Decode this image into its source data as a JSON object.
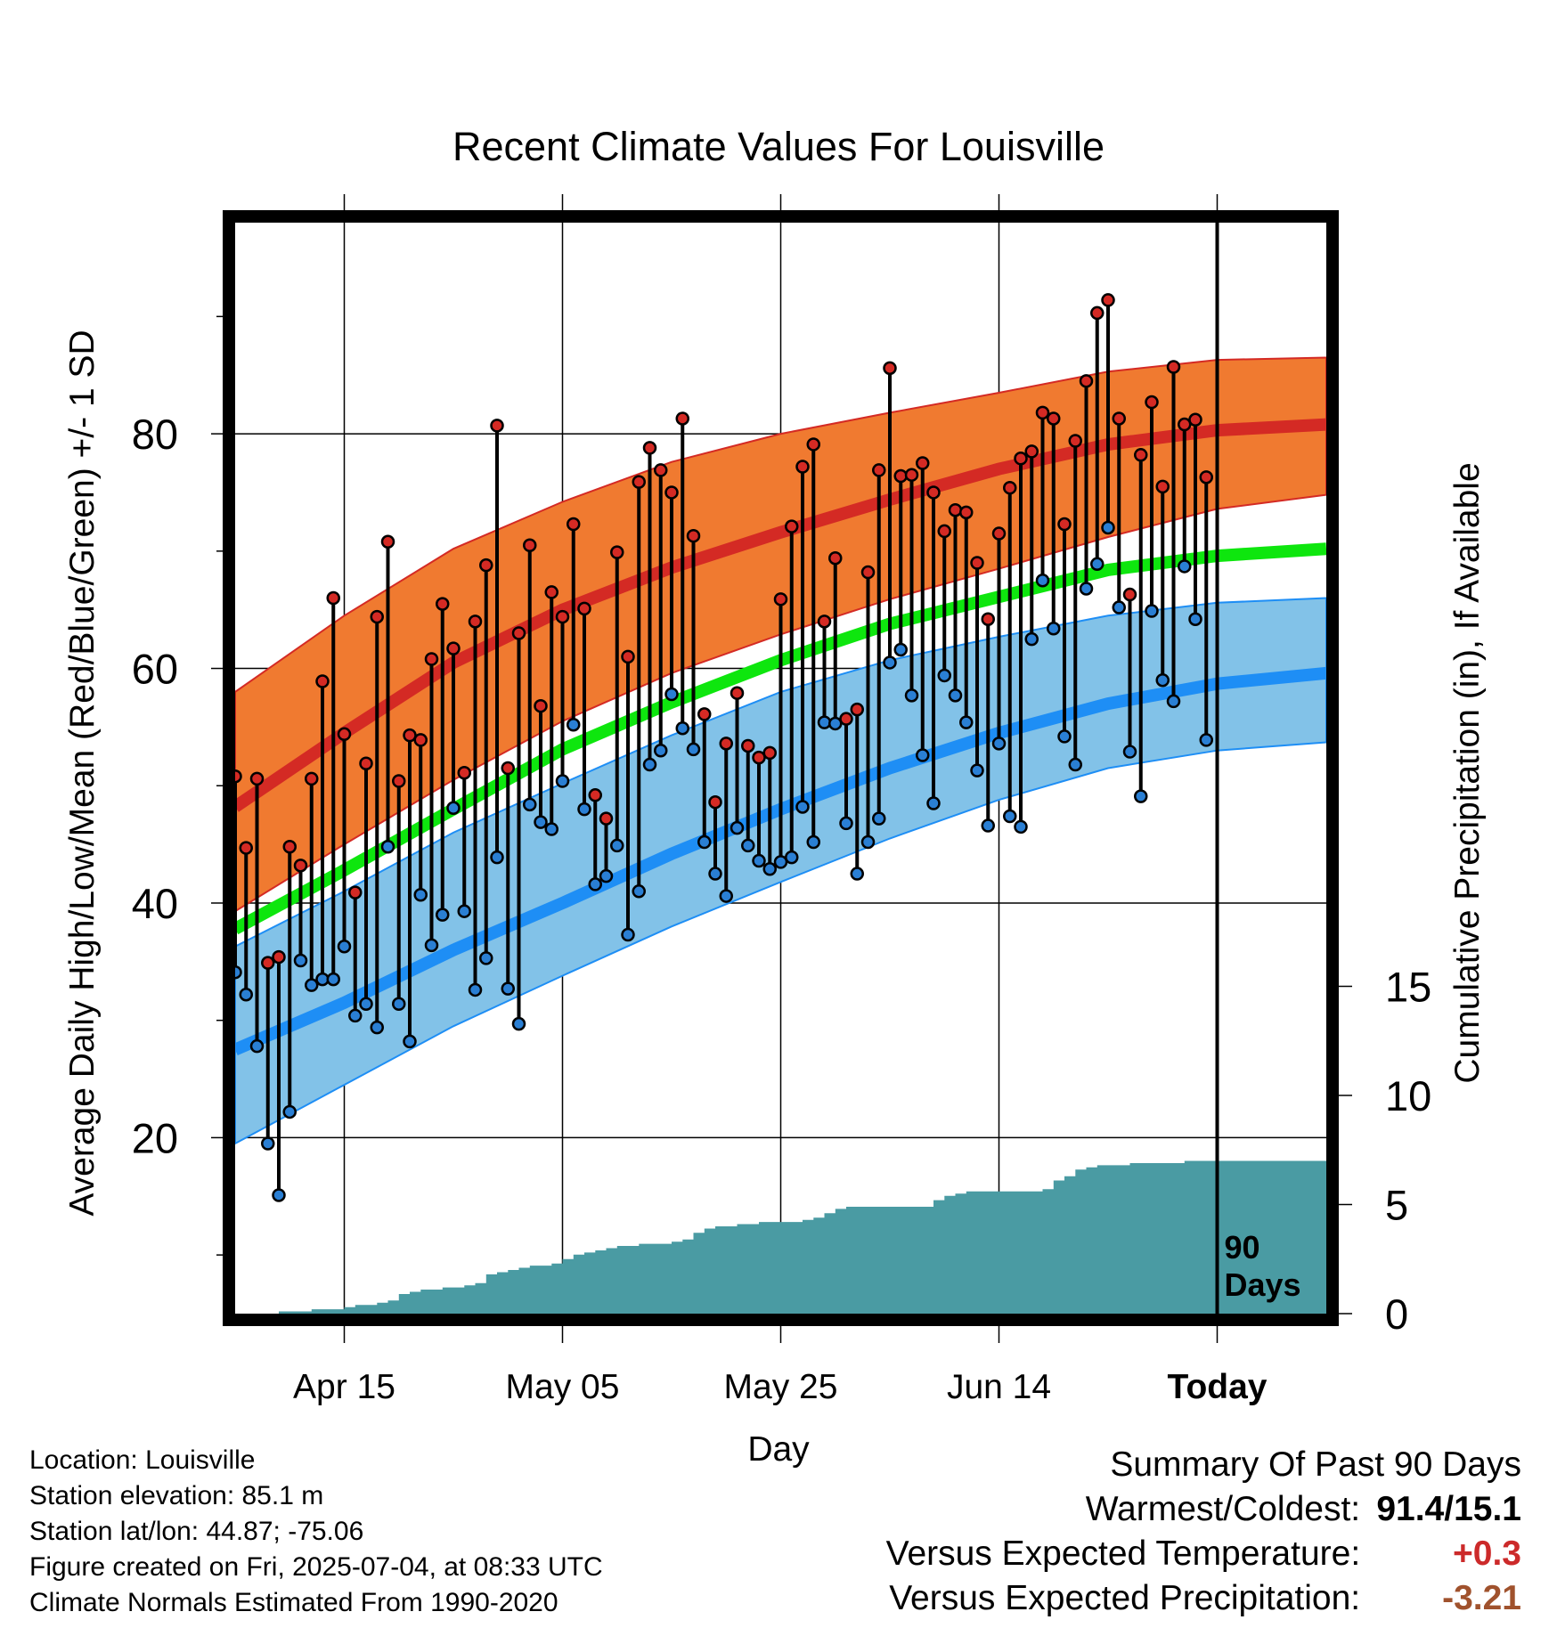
{
  "title": "Recent Climate Values For Louisville",
  "colors": {
    "high_band": "#f07a30",
    "high_line": "#d42a24",
    "low_band": "#82c2e8",
    "low_line": "#1e8ef5",
    "mean_line": "#0ee60e",
    "precip_fill": "#4a9ba3",
    "obs_high_marker": "#d42a24",
    "obs_low_marker": "#2a7fd4"
  },
  "meta": {
    "location": "Location: Louisville",
    "elevation": "Station elevation: 85.1 m",
    "latlon": "Station lat/lon: 44.87; -75.06",
    "created": "Figure created on Fri, 2025-07-04, at 08:33 UTC",
    "normals": "Climate Normals Estimated From 1990-2020"
  },
  "summary": {
    "heading": "Summary Of Past 90 Days",
    "warmest_coldest_label": "Warmest/Coldest:",
    "warmest_coldest_value": "91.4/15.1",
    "temp_label": "Versus Expected Temperature:",
    "temp_value": "+0.3",
    "temp_color": "#cc2a2a",
    "precip_label": "Versus Expected Precipitation:",
    "precip_value": "-3.21",
    "precip_color": "#a0522d"
  },
  "chart_data": {
    "type": "line",
    "title": "Recent Climate Values For Louisville",
    "xlabel": "Day",
    "ylabel": "Average Daily High/Low/Mean (Red/Blue/Green) +/- 1 SD",
    "y2label": "Cumulative Precipitation (in), If Available",
    "xlim": [
      "2025-04-05",
      "2025-07-14"
    ],
    "ylim": [
      5,
      98
    ],
    "y2lim": [
      0,
      50
    ],
    "yticks": [
      20,
      40,
      60,
      80
    ],
    "yticks_minor": [
      10,
      30,
      50,
      70,
      90
    ],
    "y2ticks": [
      0,
      5,
      10,
      15
    ],
    "xticks": [
      {
        "date": "2025-04-15",
        "label": "Apr 15"
      },
      {
        "date": "2025-05-05",
        "label": "May 05"
      },
      {
        "date": "2025-05-25",
        "label": "May 25"
      },
      {
        "date": "2025-06-14",
        "label": "Jun 14"
      },
      {
        "date": "2025-07-04",
        "label": "Today"
      }
    ],
    "today_label": [
      "90",
      "Days"
    ],
    "grid": true,
    "normals": {
      "dates": [
        "2025-04-05",
        "2025-04-15",
        "2025-04-25",
        "2025-05-05",
        "2025-05-15",
        "2025-05-25",
        "2025-06-04",
        "2025-06-14",
        "2025-06-24",
        "2025-07-04",
        "2025-07-14"
      ],
      "high_mean": [
        48.2,
        54.5,
        60.5,
        65.0,
        68.6,
        71.6,
        74.4,
        77.0,
        79.1,
        80.3,
        80.8
      ],
      "high_sd_upper": [
        58.0,
        64.5,
        70.2,
        74.2,
        77.6,
        80.0,
        81.8,
        83.5,
        85.3,
        86.3,
        86.5
      ],
      "high_sd_lower": [
        39.3,
        45.0,
        50.5,
        55.5,
        59.6,
        62.9,
        65.9,
        68.5,
        71.2,
        73.6,
        74.8
      ],
      "mean": [
        37.8,
        42.8,
        48.0,
        53.1,
        57.1,
        60.7,
        63.8,
        66.1,
        68.4,
        69.6,
        70.2
      ],
      "low_mean": [
        27.5,
        31.5,
        36.0,
        40.0,
        44.2,
        48.0,
        51.5,
        54.5,
        57.0,
        58.7,
        59.6
      ],
      "low_sd_upper": [
        36.3,
        41.0,
        46.0,
        50.2,
        54.3,
        58.0,
        60.7,
        62.7,
        64.5,
        65.6,
        66.0
      ],
      "low_sd_lower": [
        19.5,
        24.5,
        29.5,
        33.8,
        38.0,
        41.8,
        45.5,
        48.8,
        51.5,
        53.0,
        53.7
      ]
    },
    "observed": {
      "start_date": "2025-04-05",
      "high": [
        50.8,
        44.7,
        50.6,
        34.9,
        35.4,
        44.8,
        43.2,
        50.6,
        58.9,
        66.0,
        54.4,
        40.9,
        51.9,
        64.4,
        70.8,
        50.4,
        54.3,
        53.9,
        60.8,
        65.5,
        61.7,
        51.1,
        64.0,
        68.8,
        80.7,
        51.5,
        63.0,
        70.5,
        56.8,
        66.5,
        64.4,
        72.3,
        65.1,
        49.2,
        47.2,
        69.9,
        61.0,
        75.9,
        78.8,
        76.9,
        75.0,
        81.3,
        71.3,
        56.1,
        48.6,
        53.6,
        57.9,
        53.4,
        52.4,
        52.8,
        65.9,
        72.1,
        77.2,
        79.1,
        64.0,
        69.4,
        55.7,
        56.5,
        68.2,
        76.9,
        85.6,
        76.4,
        76.5,
        77.5,
        75.0,
        71.7,
        73.5,
        73.3,
        69.0,
        64.2,
        71.5,
        75.4,
        77.9,
        78.5,
        81.8,
        81.3,
        72.3,
        79.4,
        84.5,
        90.3,
        91.4,
        81.3,
        66.3,
        78.2,
        82.7,
        75.5,
        85.7,
        80.8,
        81.2,
        76.3
      ],
      "low": [
        34.1,
        32.2,
        27.8,
        19.5,
        15.1,
        22.2,
        35.1,
        33.0,
        33.5,
        33.5,
        36.3,
        30.4,
        31.4,
        29.4,
        44.8,
        31.4,
        28.2,
        40.7,
        36.4,
        39.0,
        48.1,
        39.3,
        32.6,
        35.3,
        43.9,
        32.7,
        29.7,
        48.4,
        46.9,
        46.3,
        50.4,
        55.2,
        48.0,
        41.6,
        42.3,
        44.9,
        37.3,
        41.0,
        51.8,
        53.0,
        57.8,
        54.9,
        53.1,
        45.2,
        42.5,
        40.6,
        46.4,
        44.9,
        43.6,
        42.9,
        43.5,
        43.9,
        48.2,
        45.2,
        55.4,
        55.3,
        46.8,
        42.5,
        45.2,
        47.2,
        60.5,
        61.6,
        57.7,
        52.6,
        48.5,
        59.4,
        57.7,
        55.4,
        51.3,
        46.6,
        53.6,
        47.4,
        46.5,
        62.5,
        67.5,
        63.4,
        54.2,
        51.8,
        66.8,
        68.9,
        72.0,
        65.2,
        52.9,
        49.1,
        64.9,
        59.0,
        57.2,
        68.7,
        64.2,
        53.9
      ]
    },
    "precip_cumulative": [
      0.0,
      0.0,
      0.0,
      0.0,
      0.1,
      0.1,
      0.1,
      0.2,
      0.2,
      0.2,
      0.3,
      0.4,
      0.4,
      0.5,
      0.6,
      0.9,
      1.0,
      1.1,
      1.1,
      1.2,
      1.2,
      1.3,
      1.4,
      1.8,
      1.9,
      2.0,
      2.1,
      2.2,
      2.2,
      2.3,
      2.5,
      2.7,
      2.8,
      2.9,
      3.0,
      3.1,
      3.1,
      3.2,
      3.2,
      3.2,
      3.3,
      3.4,
      3.7,
      3.9,
      4.0,
      4.0,
      4.1,
      4.1,
      4.2,
      4.2,
      4.2,
      4.2,
      4.3,
      4.4,
      4.6,
      4.8,
      4.9,
      4.9,
      4.9,
      4.9,
      4.9,
      4.9,
      4.9,
      4.9,
      5.2,
      5.4,
      5.5,
      5.6,
      5.6,
      5.6,
      5.6,
      5.6,
      5.6,
      5.6,
      5.7,
      6.1,
      6.3,
      6.6,
      6.7,
      6.8,
      6.8,
      6.8,
      6.9,
      6.9,
      6.9,
      6.9,
      6.9,
      7.0,
      7.0,
      7.0
    ],
    "precip_final_value": 7.0
  }
}
